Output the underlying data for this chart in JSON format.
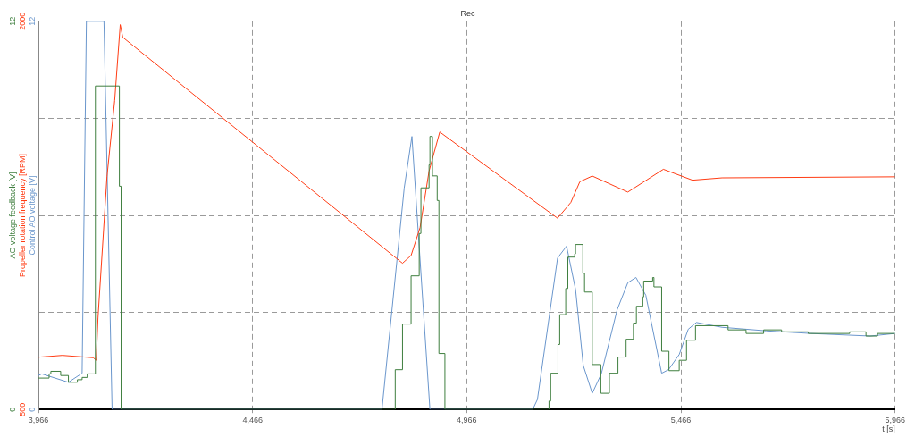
{
  "chart_data": {
    "type": "line",
    "title": "Rec",
    "xlabel": "t [s]",
    "ylabel": "Control AO voltage [V]",
    "y2label": "Propeller rotation frequency [RPM]",
    "y3label": "AO voltage feedback [V]",
    "xlim": [
      3966,
      5966
    ],
    "xticks": [
      {
        "value": 3966,
        "label": "3,966"
      },
      {
        "value": 4466,
        "label": "4,466"
      },
      {
        "value": 4966,
        "label": "4,966"
      },
      {
        "value": 5466,
        "label": "5,466"
      },
      {
        "value": 5966,
        "label": "5,966"
      }
    ],
    "ylim": [
      0,
      12
    ],
    "yticks": [
      0,
      {
        "value": 3,
        "label": null
      },
      {
        "value": 6,
        "label": null
      },
      {
        "value": 9,
        "label": null
      },
      12
    ],
    "y2lim": [
      500,
      2000
    ],
    "y2ticks": [
      500,
      2000
    ],
    "y3lim": [
      0,
      12
    ],
    "y3ticks": [
      0,
      12
    ],
    "grid": true,
    "series": [
      {
        "type": "step",
        "color": "#3f7f3f",
        "axis": "y3",
        "x": [
          3966,
          3991,
          3995,
          4018,
          4036,
          4057,
          4068,
          4080,
          4099,
          4155,
          4159,
          4799,
          4816,
          4836,
          4855,
          4859,
          4878,
          4880,
          4886,
          4897,
          4901,
          4915,
          5158,
          5162,
          5179,
          5183,
          5197,
          5202,
          5218,
          5220,
          5237,
          5241,
          5259,
          5279,
          5299,
          5319,
          5338,
          5355,
          5362,
          5377,
          5379,
          5400,
          5403,
          5421,
          5438,
          5462,
          5479,
          5500,
          5576,
          5618,
          5659,
          5701,
          5763,
          5860,
          5898,
          5925,
          5966
        ],
        "values": [
          0.97,
          1.1,
          1.18,
          1.05,
          0.84,
          0.92,
          0.99,
          1.1,
          10.0,
          6.9,
          0,
          1.23,
          2.64,
          4.13,
          5.44,
          6.85,
          7.56,
          8.44,
          7.22,
          6.46,
          1.73,
          0,
          0.26,
          1.12,
          2.01,
          2.93,
          3.74,
          4.71,
          4.81,
          5.1,
          4.21,
          3.63,
          1.39,
          0.5,
          1.12,
          1.62,
          2.17,
          2.67,
          3.19,
          3.48,
          3.97,
          4.08,
          3.79,
          1.8,
          1.2,
          1.52,
          2.14,
          2.59,
          2.46,
          2.35,
          2.46,
          2.4,
          2.35,
          2.4,
          2.27,
          2.35,
          2.35
        ]
      },
      {
        "type": "line",
        "color": "#ff3c14",
        "axis": "y2",
        "x": [
          3966,
          4022,
          4094,
          4101,
          4105,
          4126,
          4144,
          4157,
          4163,
          4816,
          4836,
          4857,
          4878,
          4903,
          5178,
          5209,
          5230,
          5259,
          5342,
          5425,
          5493,
          5562,
          5966
        ],
        "values": [
          702,
          709,
          700,
          690,
          853,
          1399,
          1693,
          1987,
          1938,
          1065,
          1095,
          1203,
          1421,
          1572,
          1239,
          1300,
          1380,
          1402,
          1340,
          1428,
          1386,
          1395,
          1399
        ]
      },
      {
        "type": "line",
        "color": "#6a96cc",
        "x": [
          3966,
          3974,
          4036,
          4068,
          4078,
          4119,
          4138,
          4768,
          4820,
          4838,
          4880,
          5120,
          5131,
          5178,
          5199,
          5220,
          5238,
          5259,
          5280,
          5317,
          5342,
          5361,
          5384,
          5421,
          5437,
          5462,
          5483,
          5502,
          5562,
          5665,
          5769,
          5908,
          5966
        ],
        "values": [
          1.05,
          1.1,
          0.84,
          1.12,
          12,
          12,
          0,
          0,
          6.85,
          8.44,
          0,
          0,
          0.31,
          4.68,
          5.05,
          3.71,
          1.36,
          0.5,
          1.1,
          3.08,
          3.92,
          4.08,
          3.53,
          1.12,
          1.23,
          1.7,
          2.48,
          2.69,
          2.54,
          2.43,
          2.35,
          2.27,
          2.35
        ]
      }
    ]
  }
}
